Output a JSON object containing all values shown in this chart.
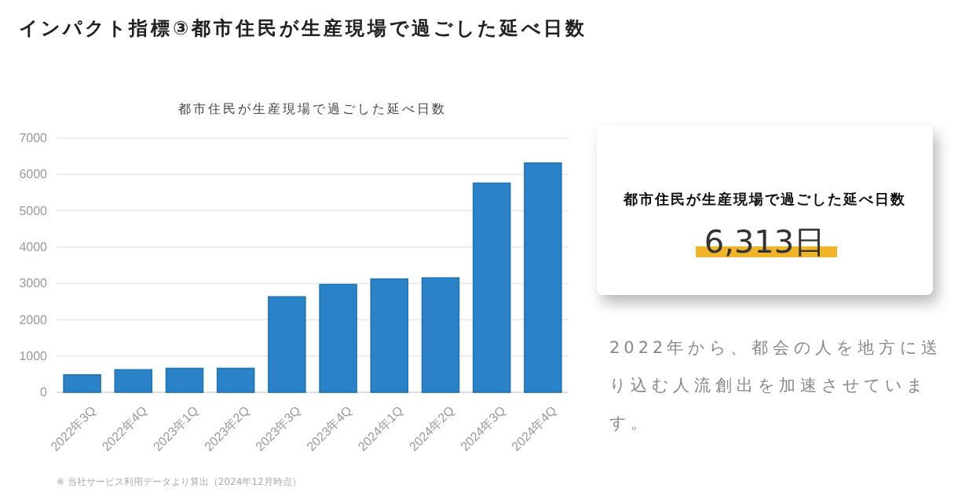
{
  "chart_data": {
    "type": "bar",
    "title": "都市住民が生産現場で過ごした延べ日数",
    "categories": [
      "2022年3Q",
      "2022年4Q",
      "2023年1Q",
      "2023年2Q",
      "2023年3Q",
      "2023年4Q",
      "2024年1Q",
      "2024年2Q",
      "2024年3Q",
      "2024年4Q"
    ],
    "values": [
      480,
      620,
      660,
      660,
      2630,
      2970,
      3120,
      3150,
      5760,
      6313
    ],
    "color": "#2a83c6",
    "ylim": [
      0,
      7000
    ],
    "yticks": [
      0,
      1000,
      2000,
      3000,
      4000,
      5000,
      6000,
      7000
    ],
    "grid": "y",
    "annotations": [
      "インパクト指標③都市住民が生産現場で過ごした延べ日数",
      "都市住民が生産現場で過ごした延べ日数",
      "6,313日",
      "2022年から、都会の人を地方に送り込む人流創出を加速させています。",
      "※ 当社サービス利用データより算出（2024年12月時点）"
    ]
  }
}
